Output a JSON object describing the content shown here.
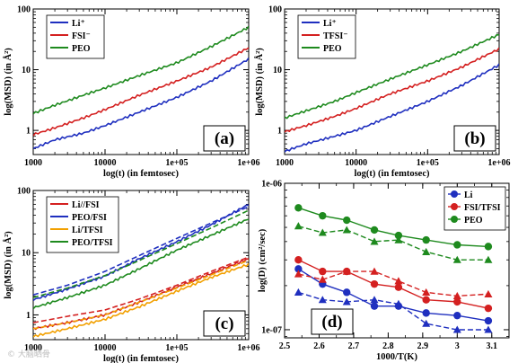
{
  "colors": {
    "Li": "#1f2fbf",
    "FSI": "#d42020",
    "PEO": "#1e8a1e",
    "Li_TFSI": "#f2a000",
    "PEO_FSI": "#1f2fbf"
  },
  "watermark": "© 大脑晒骨",
  "chart_data": [
    {
      "id": "a",
      "type": "line",
      "panel_label": "(a)",
      "xlabel": "log(t) (in femtosec)",
      "ylabel": "log(MSD) (in Å²)",
      "xscale": "log",
      "yscale": "log",
      "xlim": [
        1000,
        1000000
      ],
      "ylim": [
        0.4,
        100
      ],
      "xticks": [
        "1000",
        "10000",
        "1e+05",
        "1e+06"
      ],
      "yticks": [
        "1",
        "10",
        "100"
      ],
      "legend": "top-left",
      "series": [
        {
          "name": "Li⁺",
          "color": "#1f2fbf",
          "style": "solid",
          "x": [
            1000,
            2000,
            5000,
            10000,
            30000,
            100000,
            300000,
            1000000
          ],
          "y": [
            0.5,
            0.7,
            0.9,
            1.2,
            2.0,
            3.5,
            6.5,
            15
          ]
        },
        {
          "name": "FSI⁻",
          "color": "#d42020",
          "style": "solid",
          "x": [
            1000,
            2000,
            5000,
            10000,
            30000,
            100000,
            300000,
            1000000
          ],
          "y": [
            0.85,
            1.1,
            1.6,
            2.2,
            3.8,
            6.5,
            11,
            23
          ]
        },
        {
          "name": "PEO",
          "color": "#1e8a1e",
          "style": "solid",
          "x": [
            1000,
            2000,
            5000,
            10000,
            30000,
            100000,
            300000,
            1000000
          ],
          "y": [
            1.9,
            2.6,
            3.8,
            5.0,
            8.0,
            13,
            24,
            50
          ]
        }
      ]
    },
    {
      "id": "b",
      "type": "line",
      "panel_label": "(b)",
      "xlabel": "log(t) (in femtosec)",
      "ylabel": "log(MSD) (in Å²)",
      "xscale": "log",
      "yscale": "log",
      "xlim": [
        1000,
        1000000
      ],
      "ylim": [
        0.4,
        100
      ],
      "xticks": [
        "1000",
        "10000",
        "1e+05",
        "1e+06"
      ],
      "yticks": [
        "1",
        "10",
        "100"
      ],
      "legend": "top-left",
      "series": [
        {
          "name": "Li⁺",
          "color": "#1f2fbf",
          "style": "solid",
          "x": [
            1000,
            2000,
            5000,
            10000,
            30000,
            100000,
            300000,
            1000000
          ],
          "y": [
            0.45,
            0.6,
            0.8,
            1.0,
            1.7,
            3.0,
            5.5,
            12
          ]
        },
        {
          "name": "TFSI⁻",
          "color": "#d42020",
          "style": "solid",
          "x": [
            1000,
            2000,
            5000,
            10000,
            30000,
            100000,
            300000,
            1000000
          ],
          "y": [
            0.95,
            1.2,
            1.7,
            2.3,
            4.0,
            6.5,
            11,
            22
          ]
        },
        {
          "name": "PEO",
          "color": "#1e8a1e",
          "style": "solid",
          "x": [
            1000,
            2000,
            5000,
            10000,
            30000,
            100000,
            300000,
            1000000
          ],
          "y": [
            1.6,
            2.1,
            3.0,
            4.2,
            7.0,
            12,
            20,
            38
          ]
        }
      ]
    },
    {
      "id": "c",
      "type": "line",
      "panel_label": "(c)",
      "xlabel": "log(t) (in femtosec)",
      "ylabel": "log(MSD) (in Å²)",
      "xscale": "log",
      "yscale": "log",
      "xlim": [
        1000,
        1000000
      ],
      "ylim": [
        0.4,
        100
      ],
      "xticks": [
        "1000",
        "10000",
        "1e+05",
        "1e+06"
      ],
      "yticks": [
        "1",
        "10",
        "100"
      ],
      "legend": "top-left",
      "series": [
        {
          "name": "Li//FSI",
          "color": "#d42020",
          "style": "solid",
          "x": [
            1000,
            3000,
            10000,
            30000,
            100000,
            300000,
            1000000
          ],
          "y": [
            0.6,
            0.75,
            1.0,
            1.6,
            2.8,
            4.6,
            8.0
          ]
        },
        {
          "name": "PEO/FSI",
          "color": "#1f2fbf",
          "style": "solid",
          "x": [
            1000,
            3000,
            10000,
            30000,
            100000,
            300000,
            1000000
          ],
          "y": [
            1.75,
            2.6,
            4.2,
            8.0,
            15,
            28,
            60
          ]
        },
        {
          "name": "Li/TFSI",
          "color": "#f2a000",
          "style": "solid",
          "x": [
            1000,
            3000,
            10000,
            30000,
            100000,
            300000,
            1000000
          ],
          "y": [
            0.45,
            0.6,
            0.85,
            1.35,
            2.4,
            4.0,
            6.5
          ]
        },
        {
          "name": "PEO/TFSI",
          "color": "#1e8a1e",
          "style": "solid",
          "x": [
            1000,
            3000,
            10000,
            30000,
            100000,
            300000,
            1000000
          ],
          "y": [
            1.3,
            1.9,
            3.0,
            5.5,
            11,
            19,
            35
          ]
        },
        {
          "color": "#d42020",
          "style": "dashed",
          "x": [
            1000,
            3000,
            10000,
            30000,
            100000,
            300000,
            1000000
          ],
          "y": [
            0.75,
            0.95,
            1.2,
            1.8,
            3.0,
            5.0,
            8.5
          ]
        },
        {
          "color": "#1f2fbf",
          "style": "dashed",
          "x": [
            1000,
            3000,
            10000,
            30000,
            100000,
            300000,
            1000000
          ],
          "y": [
            2.1,
            3.0,
            5.0,
            9.0,
            17,
            30,
            55
          ]
        },
        {
          "color": "#f2a000",
          "style": "dashed",
          "x": [
            1000,
            3000,
            10000,
            30000,
            100000,
            300000,
            1000000
          ],
          "y": [
            0.6,
            0.75,
            1.0,
            1.6,
            2.7,
            4.4,
            7.5
          ]
        },
        {
          "color": "#1e8a1e",
          "style": "dashed",
          "x": [
            1000,
            3000,
            10000,
            30000,
            100000,
            300000,
            1000000
          ],
          "y": [
            1.9,
            2.7,
            4.3,
            7.5,
            14,
            25,
            48
          ]
        }
      ]
    },
    {
      "id": "d",
      "type": "line",
      "panel_label": "(d)",
      "xlabel": "1000/T(K)",
      "ylabel": "log(D) (cm²/sec)",
      "xscale": "linear",
      "yscale": "log",
      "xlim": [
        2.5,
        3.15
      ],
      "ylim": [
        8.8e-08,
        1e-06
      ],
      "xticks": [
        "2.5",
        "2.6",
        "2.7",
        "2.8",
        "2.9",
        "3",
        "3.1"
      ],
      "yticks": [
        "1e-07",
        "1e-06"
      ],
      "legend": "top-right",
      "series": [
        {
          "name": "Li",
          "color": "#1f2fbf",
          "style": "solid",
          "marker": "circle",
          "x": [
            2.54,
            2.61,
            2.68,
            2.76,
            2.83,
            2.91,
            3.0,
            3.09
          ],
          "y": [
            2.6e-07,
            2.05e-07,
            1.8e-07,
            1.45e-07,
            1.45e-07,
            1.3e-07,
            1.25e-07,
            1.15e-07
          ]
        },
        {
          "name": "FSI/TFSI",
          "color": "#d42020",
          "style": "solid",
          "marker": "circle",
          "x": [
            2.54,
            2.61,
            2.68,
            2.76,
            2.83,
            2.91,
            3.0,
            3.09
          ],
          "y": [
            3e-07,
            2.5e-07,
            2.5e-07,
            2.05e-07,
            1.95e-07,
            1.6e-07,
            1.55e-07,
            1.4e-07
          ]
        },
        {
          "name": "PEO",
          "color": "#1e8a1e",
          "style": "solid",
          "marker": "circle",
          "x": [
            2.54,
            2.61,
            2.68,
            2.76,
            2.83,
            2.91,
            3.0,
            3.09
          ],
          "y": [
            6.8e-07,
            6e-07,
            5.6e-07,
            4.8e-07,
            4.4e-07,
            4.1e-07,
            3.8e-07,
            3.7e-07
          ]
        },
        {
          "color": "#1f2fbf",
          "style": "dashed",
          "marker": "triangle",
          "x": [
            2.54,
            2.61,
            2.68,
            2.76,
            2.83,
            2.91,
            3.0,
            3.09
          ],
          "y": [
            1.8e-07,
            1.6e-07,
            1.55e-07,
            1.6e-07,
            1.5e-07,
            1.1e-07,
            1e-07,
            1e-07
          ]
        },
        {
          "color": "#d42020",
          "style": "dashed",
          "marker": "triangle",
          "x": [
            2.54,
            2.61,
            2.68,
            2.76,
            2.83,
            2.91,
            3.0,
            3.09
          ],
          "y": [
            2.4e-07,
            2.2e-07,
            2.5e-07,
            2.5e-07,
            2.15e-07,
            1.8e-07,
            1.7e-07,
            1.75e-07
          ]
        },
        {
          "color": "#1e8a1e",
          "style": "dashed",
          "marker": "triangle",
          "x": [
            2.54,
            2.61,
            2.68,
            2.76,
            2.83,
            2.91,
            3.0,
            3.09
          ],
          "y": [
            5.1e-07,
            4.6e-07,
            4.8e-07,
            4e-07,
            4.1e-07,
            3.4e-07,
            3e-07,
            3e-07
          ]
        }
      ]
    }
  ]
}
